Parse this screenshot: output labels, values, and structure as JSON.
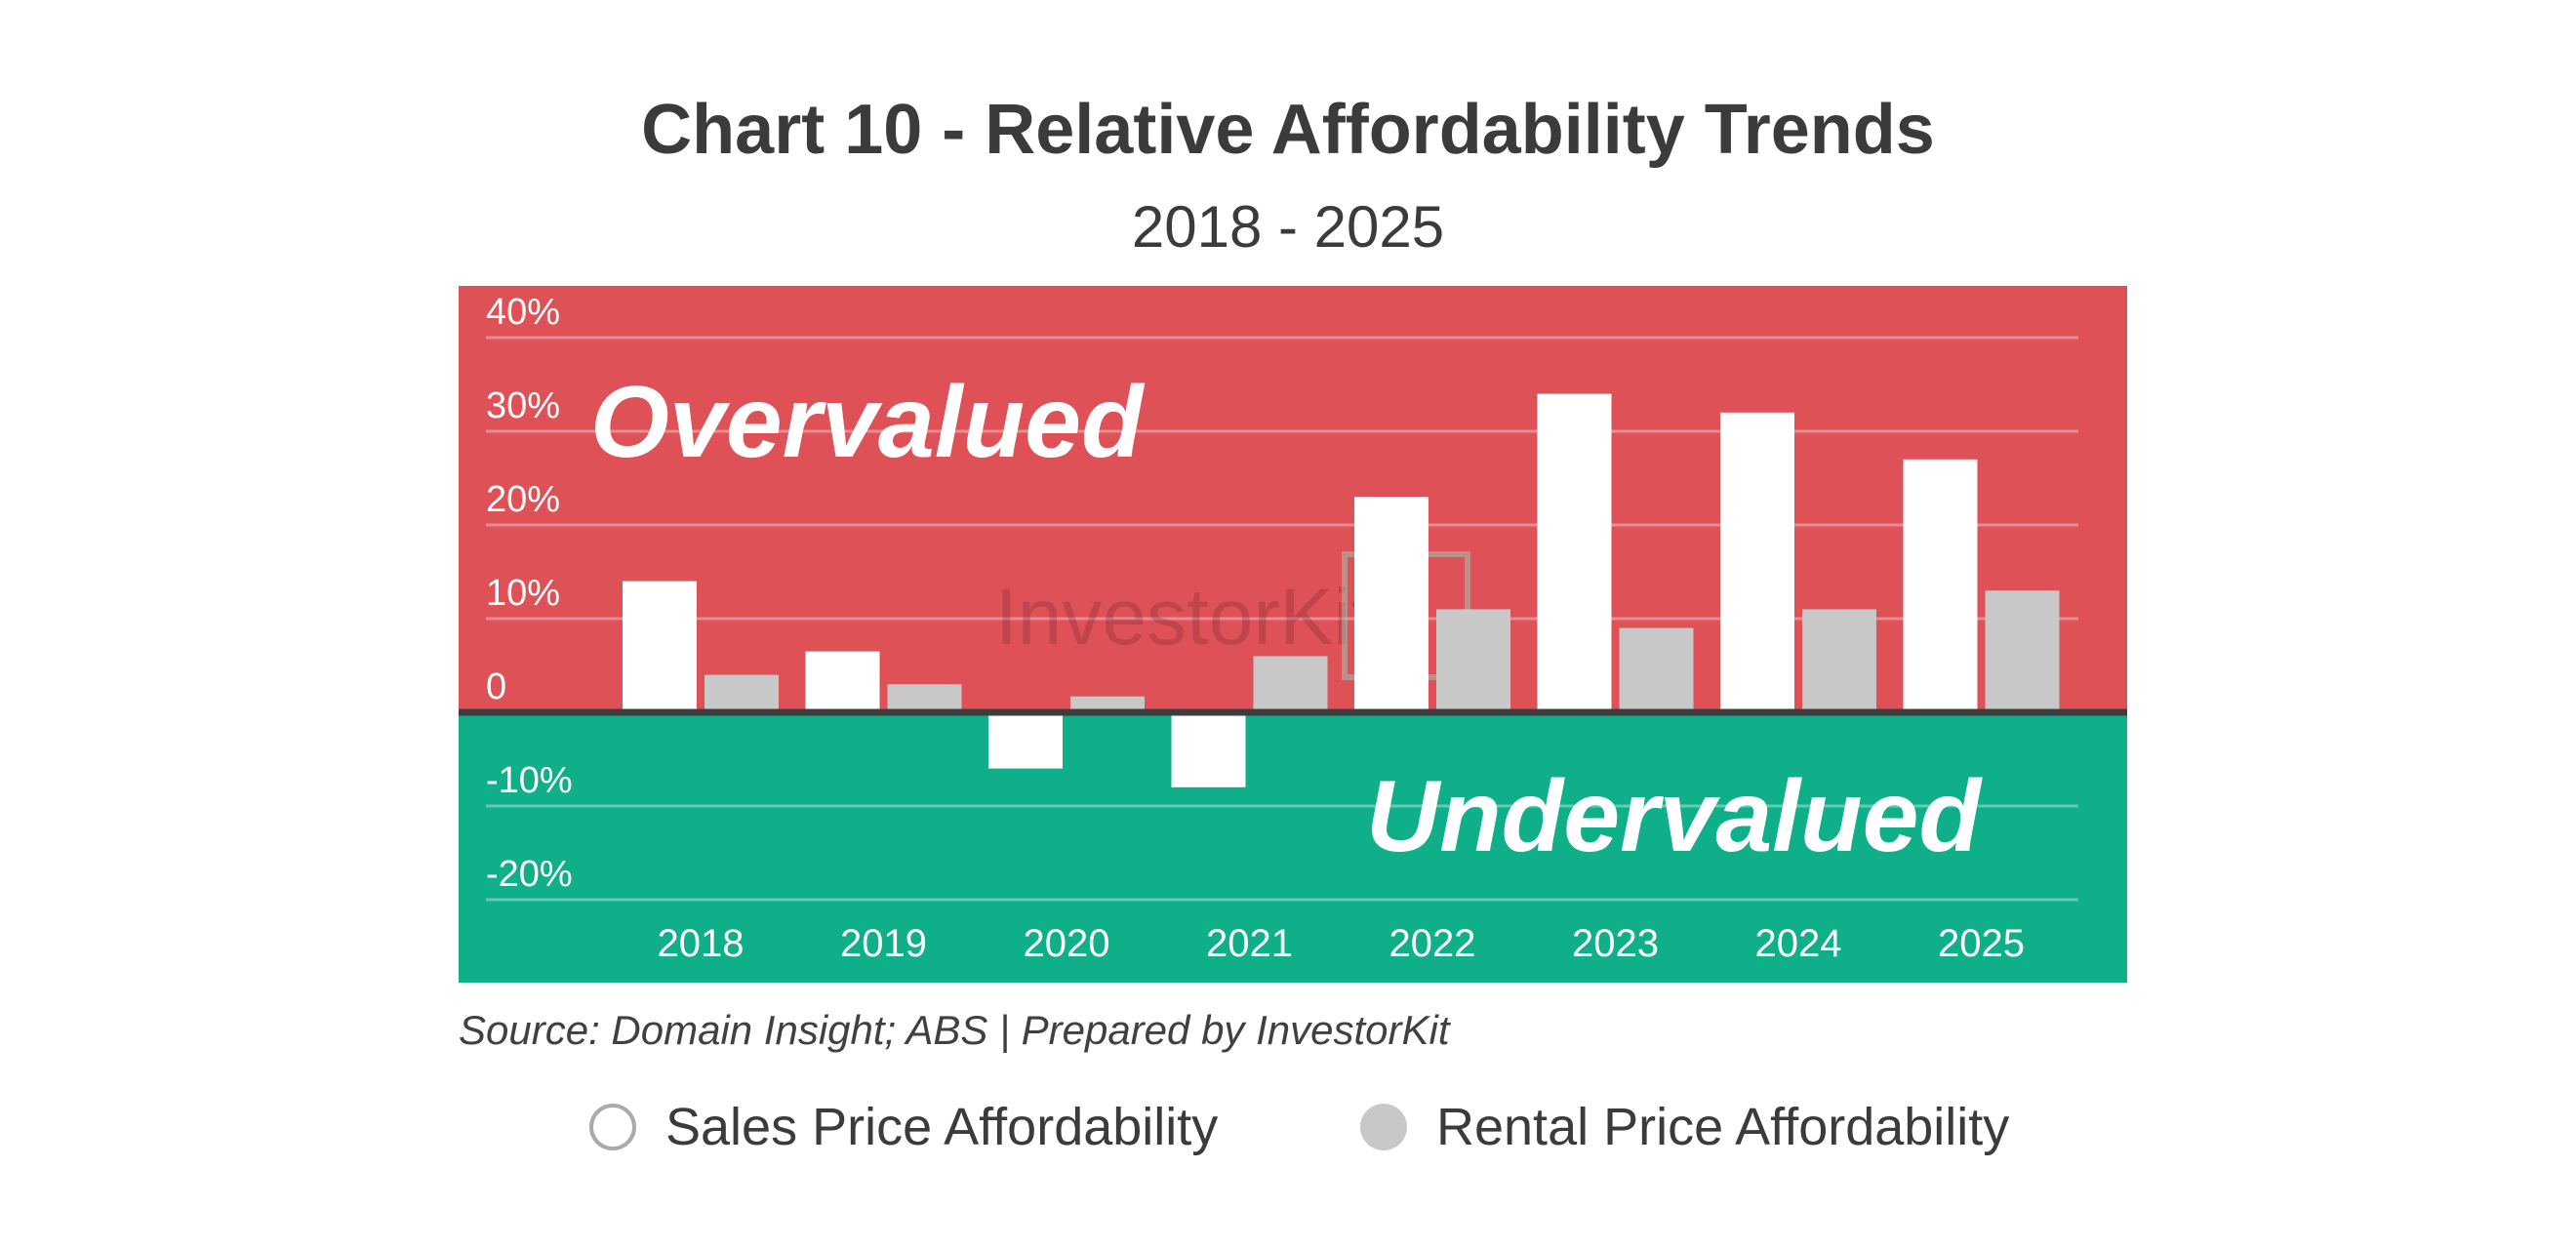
{
  "title": "Chart 10 - Relative Affordability Trends",
  "subtitle": "2018 - 2025",
  "source": "Source: Domain Insight; ABS | Prepared by InvestorKit",
  "colors": {
    "overvalued_bg": "#dd5157",
    "undervalued_bg": "#0faf89",
    "sales_bar": "#ffffff",
    "rental_bar": "#c8c8c8",
    "baseline": "#3d3d3d",
    "text": "#3b3b3b"
  },
  "zones": {
    "overvalued_label": "Overvalued",
    "undervalued_label": "Undervalued"
  },
  "watermark": "InvestorKit",
  "legend": [
    {
      "label": "Sales Price Affordability",
      "icon": "circle-outline-icon"
    },
    {
      "label": "Rental Price Affordability",
      "icon": "circle-filled-icon"
    }
  ],
  "chart_data": {
    "type": "bar",
    "title": "Chart 10 - Relative Affordability Trends",
    "subtitle": "2018 - 2025",
    "categories": [
      "2018",
      "2019",
      "2020",
      "2021",
      "2022",
      "2023",
      "2024",
      "2025"
    ],
    "series": [
      {
        "name": "Sales Price Affordability",
        "values": [
          14,
          6.5,
          -6,
          -8,
          23,
          34,
          32,
          27
        ]
      },
      {
        "name": "Rental Price Affordability",
        "values": [
          4,
          3,
          1.7,
          6,
          11,
          9,
          11,
          13
        ]
      }
    ],
    "yticks": [
      40,
      30,
      20,
      10,
      0,
      -10,
      -20
    ],
    "ytick_labels": [
      "40%",
      "30%",
      "20%",
      "10%",
      "0",
      "-10%",
      "-20%"
    ],
    "ylim": [
      -25,
      45
    ],
    "xlabel": "",
    "ylabel": "",
    "grid": true,
    "legend_position": "bottom"
  }
}
